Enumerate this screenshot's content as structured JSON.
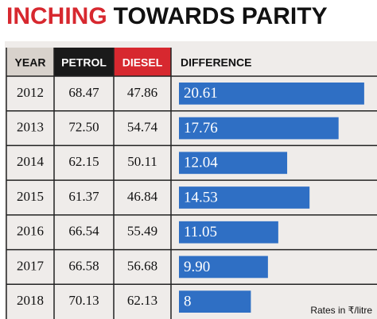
{
  "chart_data": {
    "type": "bar",
    "title_parts": [
      "INCHING",
      "TOWARDS PARITY"
    ],
    "column_headers": [
      "YEAR",
      "PETROL",
      "DIESEL",
      "DIFFERENCE"
    ],
    "categories": [
      "2012",
      "2013",
      "2014",
      "2015",
      "2016",
      "2017",
      "2018"
    ],
    "petrol": {
      "values": [
        68.47,
        72.5,
        62.15,
        61.37,
        66.54,
        66.58,
        70.13
      ],
      "value_labels": [
        "68.47",
        "72.50",
        "62.15",
        "61.37",
        "66.54",
        "66.58",
        "70.13"
      ]
    },
    "diesel": {
      "values": [
        47.86,
        54.74,
        50.11,
        46.84,
        55.49,
        56.68,
        62.13
      ]
    },
    "values": [
      20.61,
      17.76,
      12.04,
      14.53,
      11.05,
      9.9,
      8
    ],
    "value_labels": [
      "20.61",
      "17.76",
      "12.04",
      "14.53",
      "11.05",
      "9.90",
      "8"
    ],
    "color": "#2f6fc4",
    "note": "Rates in ₹/litre"
  }
}
